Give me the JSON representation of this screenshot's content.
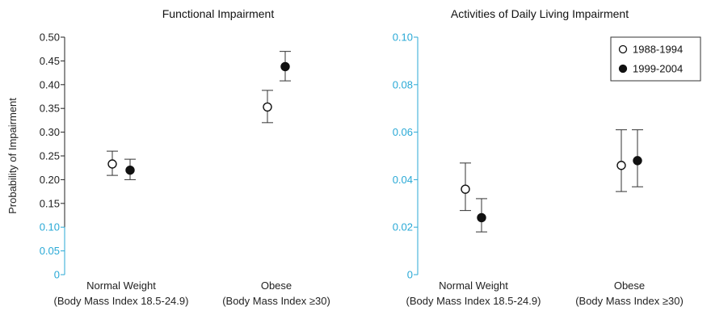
{
  "chart_data": [
    {
      "type": "scatter",
      "title": "Functional Impairment",
      "ylabel": "Probability of Impairment",
      "ylim": [
        0,
        0.5
      ],
      "yticks": [
        {
          "value": 0,
          "label": "0",
          "color": "#29a9d6"
        },
        {
          "value": 0.05,
          "label": "0.05",
          "color": "#29a9d6"
        },
        {
          "value": 0.1,
          "label": "0.10",
          "color": "#29a9d6"
        },
        {
          "value": 0.15,
          "label": "0.15",
          "color": "#222222"
        },
        {
          "value": 0.2,
          "label": "0.20",
          "color": "#222222"
        },
        {
          "value": 0.25,
          "label": "0.25",
          "color": "#222222"
        },
        {
          "value": 0.3,
          "label": "0.30",
          "color": "#222222"
        },
        {
          "value": 0.35,
          "label": "0.35",
          "color": "#222222"
        },
        {
          "value": 0.4,
          "label": "0.40",
          "color": "#222222"
        },
        {
          "value": 0.45,
          "label": "0.45",
          "color": "#222222"
        },
        {
          "value": 0.5,
          "label": "0.50",
          "color": "#222222"
        }
      ],
      "categories": [
        {
          "line1": "Normal Weight",
          "line2": "(Body Mass Index 18.5-24.9)"
        },
        {
          "line1": "Obese",
          "line2": "(Body Mass Index ≥30)"
        }
      ],
      "series": [
        {
          "name": "1988-1994",
          "marker": "open",
          "values": [
            0.233,
            0.353
          ],
          "lower": [
            0.209,
            0.32
          ],
          "upper": [
            0.26,
            0.388
          ]
        },
        {
          "name": "1999-2004",
          "marker": "filled",
          "values": [
            0.22,
            0.438
          ],
          "lower": [
            0.2,
            0.408
          ],
          "upper": [
            0.243,
            0.47
          ]
        }
      ],
      "legend": false
    },
    {
      "type": "scatter",
      "title": "Activities of Daily Living Impairment",
      "ylabel": "",
      "ylim": [
        0,
        0.1
      ],
      "yticks": [
        {
          "value": 0,
          "label": "0",
          "color": "#29a9d6"
        },
        {
          "value": 0.02,
          "label": "0.02",
          "color": "#29a9d6"
        },
        {
          "value": 0.04,
          "label": "0.04",
          "color": "#29a9d6"
        },
        {
          "value": 0.06,
          "label": "0.06",
          "color": "#29a9d6"
        },
        {
          "value": 0.08,
          "label": "0.08",
          "color": "#29a9d6"
        },
        {
          "value": 0.1,
          "label": "0.10",
          "color": "#29a9d6"
        }
      ],
      "categories": [
        {
          "line1": "Normal Weight",
          "line2": "(Body Mass Index 18.5-24.9)"
        },
        {
          "line1": "Obese",
          "line2": "(Body Mass Index ≥30)"
        }
      ],
      "series": [
        {
          "name": "1988-1994",
          "marker": "open",
          "values": [
            0.036,
            0.046
          ],
          "lower": [
            0.027,
            0.035
          ],
          "upper": [
            0.047,
            0.061
          ]
        },
        {
          "name": "1999-2004",
          "marker": "filled",
          "values": [
            0.024,
            0.048
          ],
          "lower": [
            0.018,
            0.037
          ],
          "upper": [
            0.032,
            0.061
          ]
        }
      ],
      "legend": "top-right"
    }
  ],
  "colors": {
    "axis_blue": "#29a9d6",
    "axis_dark": "#222222",
    "marker": "#111111"
  }
}
